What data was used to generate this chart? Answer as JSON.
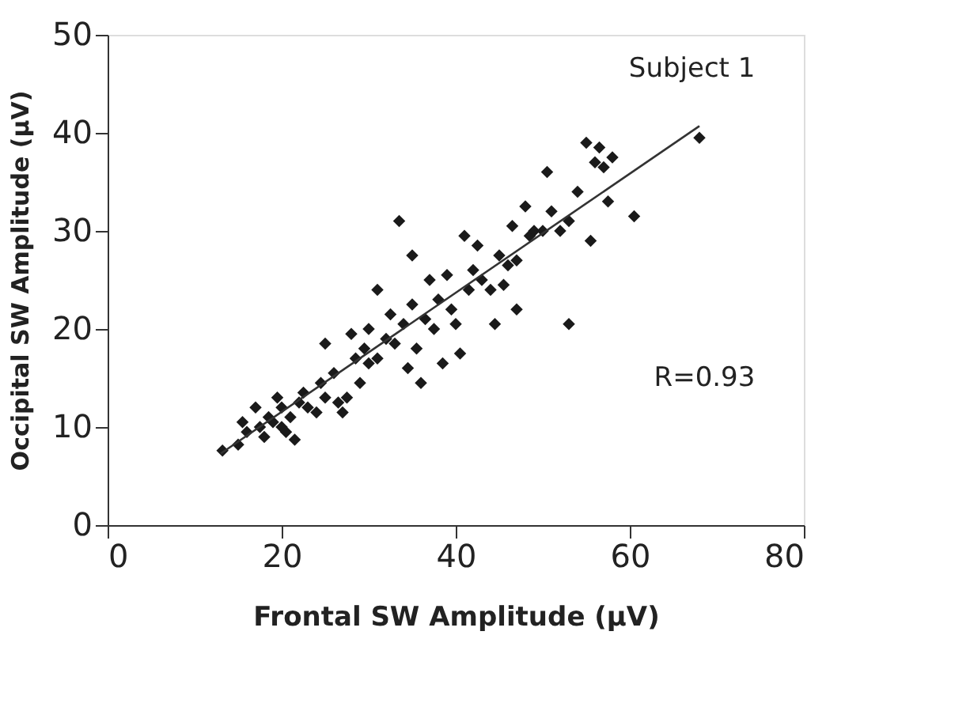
{
  "chart_data": {
    "type": "scatter",
    "xlabel": "Frontal SW Amplitude (µV)",
    "ylabel": "Occipital SW Amplitude (µV)",
    "xlim": [
      0,
      80
    ],
    "xticks": [
      0,
      20,
      40,
      60,
      80
    ],
    "ylim": [
      0,
      50
    ],
    "yticks": [
      0,
      10,
      20,
      30,
      40,
      50
    ],
    "grid": false,
    "marker": "diamond",
    "series": [
      {
        "color": "#1a1a1a",
        "x": [
          13.2,
          15,
          15.5,
          16,
          17,
          17.5,
          18,
          18.5,
          19,
          19.5,
          20,
          20,
          20.5,
          21,
          21.5,
          22,
          22.5,
          23,
          24,
          24.5,
          25,
          25,
          26,
          26.5,
          27,
          27.5,
          28,
          28.5,
          29,
          29.5,
          30,
          30,
          31,
          31,
          32,
          32.5,
          33,
          33.5,
          34,
          34.5,
          35,
          35.5,
          35,
          36,
          36.5,
          37,
          37.5,
          38,
          38.5,
          39,
          39.5,
          40,
          40.5,
          41,
          41.5,
          42,
          42.5,
          43,
          44,
          44.5,
          45,
          45.5,
          46,
          46.5,
          47,
          47,
          48,
          48.5,
          49,
          50,
          50.5,
          51,
          52,
          53,
          53,
          54,
          55,
          55.5,
          56,
          56.5,
          57,
          57.5,
          58,
          60.5,
          68
        ],
        "values": [
          7.6,
          8.2,
          10.5,
          9.5,
          12,
          10,
          9,
          11,
          10.5,
          13,
          10,
          12,
          9.5,
          11,
          8.7,
          12.5,
          13.5,
          12,
          11.5,
          14.5,
          13,
          18.5,
          15.5,
          12.5,
          11.5,
          13,
          19.5,
          17,
          14.5,
          18,
          20,
          16.5,
          17,
          24,
          19,
          21.5,
          18.5,
          31,
          20.5,
          16,
          22.5,
          18,
          27.5,
          14.5,
          21,
          25,
          20,
          23,
          16.5,
          25.5,
          22,
          20.5,
          17.5,
          29.5,
          24,
          26,
          28.5,
          25,
          24,
          20.5,
          27.5,
          24.5,
          26.5,
          30.5,
          27,
          22,
          32.5,
          29.5,
          30,
          30,
          36,
          32,
          30,
          20.5,
          31,
          34,
          39,
          29,
          37,
          38.5,
          36.5,
          33,
          37.5,
          31.5,
          39.5
        ]
      },
      {
        "type": "line",
        "color": "#333333",
        "marker": "none",
        "x": [
          13,
          68
        ],
        "values": [
          7.3,
          40.7
        ]
      }
    ],
    "annotations": [
      {
        "text": "Subject 1"
      },
      {
        "text": "R=0.93"
      }
    ]
  }
}
